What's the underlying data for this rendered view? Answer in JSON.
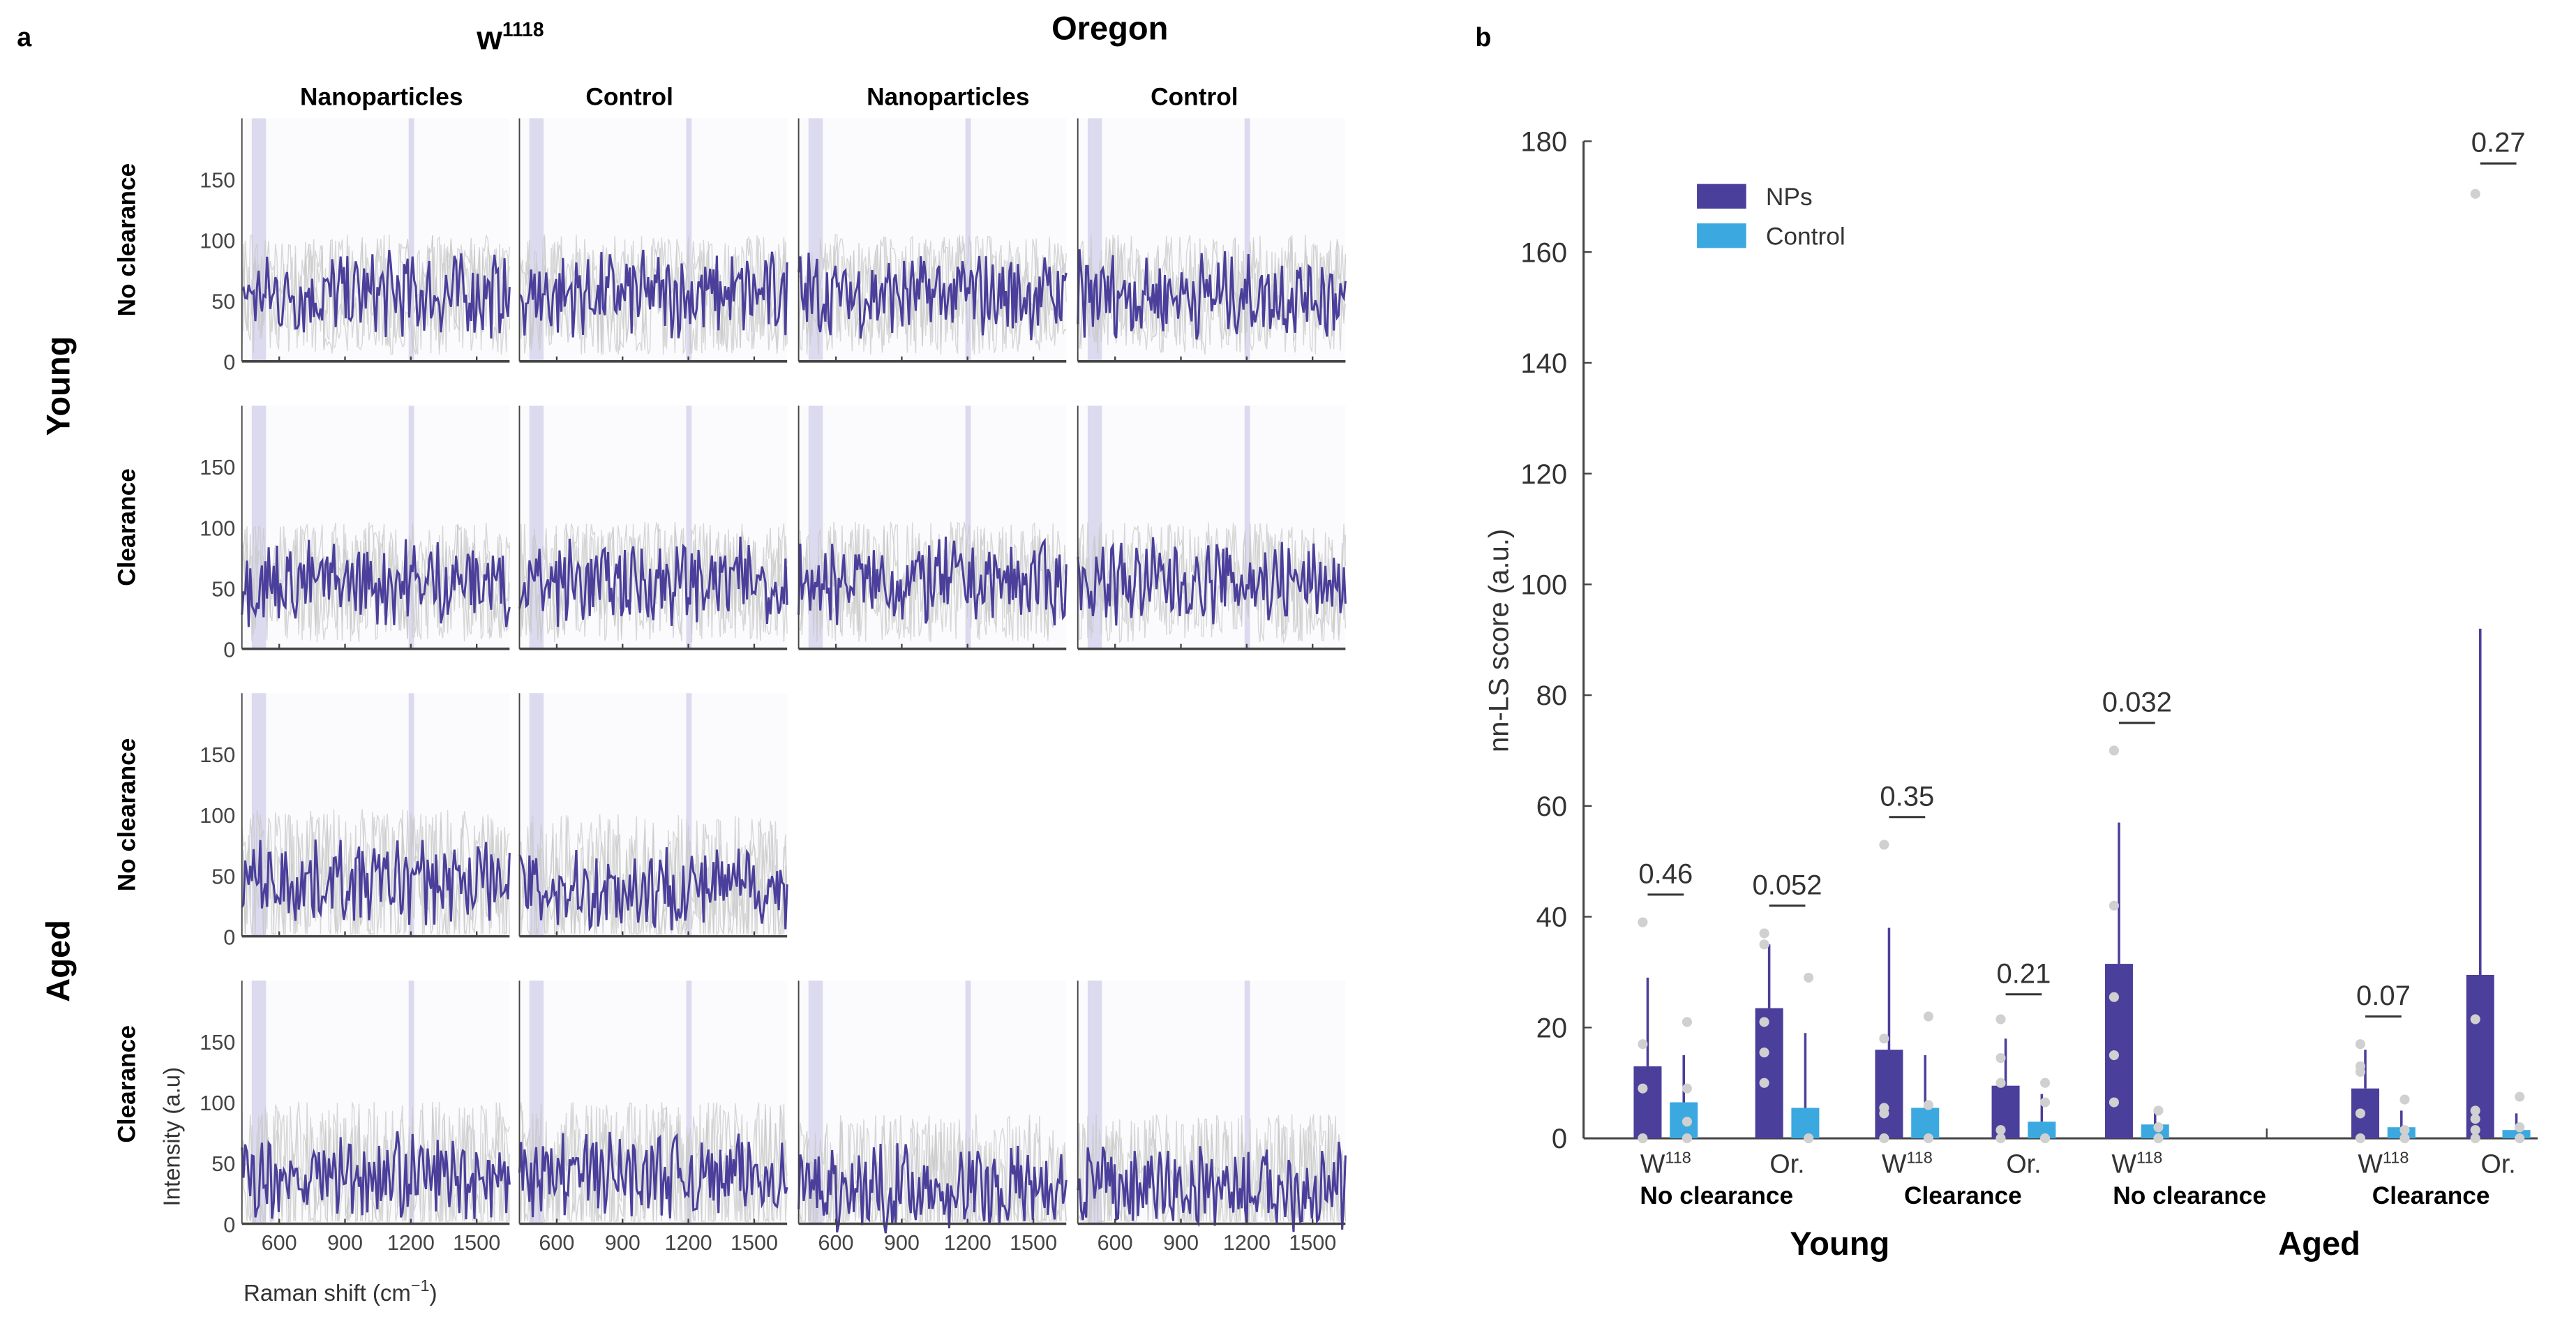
{
  "chart_data": [
    {
      "panel": "a",
      "type": "line",
      "panel_label": "a",
      "strain_titles": {
        "w1118_base": "w",
        "w1118_sup": "1118",
        "oregon": "Oregon"
      },
      "column_titles": [
        "Nanoparticles",
        "Control",
        "Nanoparticles",
        "Control"
      ],
      "age_labels": [
        "Young",
        "Aged"
      ],
      "row_labels": [
        "No clearance",
        "Clearance",
        "No clearance",
        "Clearance"
      ],
      "ylabel": "Intensity (a.u)",
      "xlabel": "Raman shift (cm",
      "xlabel_sup": "−1",
      "xlabel_end": ")",
      "yticks": [
        "0",
        "50",
        "100",
        "150"
      ],
      "xticks": [
        "600",
        "900",
        "1200",
        "1500"
      ],
      "xlim": [
        430,
        1650
      ],
      "ylim": [
        0,
        200
      ],
      "shaded_bands": [
        [
          475,
          540
        ],
        [
          1190,
          1215
        ]
      ],
      "mean_color": "#4a3f9a",
      "band_color": "#dcdaee",
      "panels_mean_level": [
        [
          55,
          55,
          55,
          55
        ],
        [
          55,
          55,
          55,
          55
        ],
        [
          45,
          40,
          null,
          null
        ],
        [
          40,
          40,
          30,
          30
        ]
      ]
    },
    {
      "panel": "b",
      "type": "bar",
      "panel_label": "b",
      "ylabel": "nn-LS score (a.u.)",
      "ylim": [
        0,
        180
      ],
      "yticks": [
        "0",
        "20",
        "40",
        "60",
        "80",
        "100",
        "120",
        "140",
        "160",
        "180"
      ],
      "legend": [
        {
          "name": "NPs",
          "color": "#4a3f9a"
        },
        {
          "name": "Control",
          "color": "#3ba8e0"
        }
      ],
      "legend_placement": "top-left",
      "categories": [
        {
          "strain": "W",
          "sup": "118",
          "np": 13,
          "np_err": 29,
          "ctrl": 6.5,
          "ctrl_err": 15,
          "p": "0.46",
          "p_y": 44,
          "np_pts": [
            0,
            9,
            17,
            39
          ],
          "ctrl_pts": [
            0,
            3,
            9,
            21
          ]
        },
        {
          "strain": "Or.",
          "sup": "",
          "np": 23.5,
          "np_err": 35,
          "ctrl": 5.5,
          "ctrl_err": 19,
          "p": "0.052",
          "p_y": 42,
          "np_pts": [
            10,
            15.5,
            21,
            35,
            37
          ],
          "ctrl_pts": [
            0,
            29
          ]
        },
        {
          "strain": "W",
          "sup": "118",
          "np": 16,
          "np_err": 38,
          "ctrl": 5.5,
          "ctrl_err": 15,
          "p": "0.35",
          "p_y": 58,
          "np_pts": [
            0,
            4.5,
            5.5,
            18,
            53
          ],
          "ctrl_pts": [
            0,
            6,
            22
          ]
        },
        {
          "strain": "Or.",
          "sup": "",
          "np": 9.5,
          "np_err": 18,
          "ctrl": 3,
          "ctrl_err": 8,
          "p": "0.21",
          "p_y": 26,
          "np_pts": [
            0,
            1.5,
            10,
            14.5,
            21.5
          ],
          "ctrl_pts": [
            0,
            6.5,
            10
          ]
        },
        {
          "strain": "W",
          "sup": "118",
          "np": 31.5,
          "np_err": 57,
          "ctrl": 2.5,
          "ctrl_err": 5,
          "p": "0.032",
          "p_y": 75,
          "np_pts": [
            6.5,
            15,
            25.5,
            42,
            70
          ],
          "ctrl_pts": [
            0,
            2,
            5
          ]
        },
        {
          "strain": "W",
          "sup": "118",
          "np": 9,
          "np_err": 16,
          "ctrl": 2,
          "ctrl_err": 5,
          "p": "0.07",
          "p_y": 22,
          "np_pts": [
            0,
            4.5,
            12,
            13,
            17
          ],
          "ctrl_pts": [
            0,
            1.5,
            7
          ]
        },
        {
          "strain": "Or.",
          "sup": "",
          "np": 29.5,
          "np_err": 92,
          "ctrl": 1.5,
          "ctrl_err": 4.5,
          "p": "0.27",
          "p_y": 176,
          "np_pts": [
            0,
            1.5,
            3.5,
            5,
            21.5,
            170.5
          ],
          "ctrl_pts": [
            0,
            2,
            7.5
          ]
        }
      ],
      "condition_labels": [
        "No clearance",
        "Clearance",
        "No clearance",
        "Clearance"
      ],
      "age_labels": [
        "Young",
        "Aged"
      ]
    }
  ]
}
